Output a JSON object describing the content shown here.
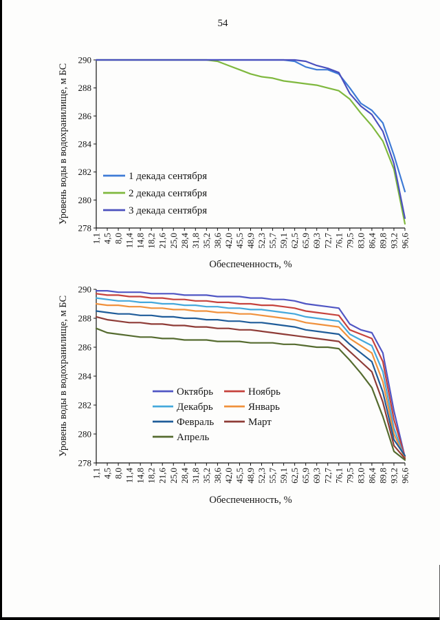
{
  "page": {
    "number": "54"
  },
  "chart_data": [
    {
      "type": "line",
      "title": "",
      "xlabel": "Обеспеченность, %",
      "ylabel": "Уровень воды в водохранилище, м БС",
      "ylim": [
        278,
        290
      ],
      "yticks": [
        278,
        280,
        282,
        284,
        286,
        288,
        290
      ],
      "grid": false,
      "legend_position": "inside-left",
      "categories": [
        "1,1",
        "4,5",
        "8,0",
        "11,4",
        "14,8",
        "18,2",
        "21,6",
        "25,0",
        "28,4",
        "31,8",
        "35,2",
        "38,6",
        "42,0",
        "45,5",
        "48,9",
        "52,3",
        "55,7",
        "59,1",
        "62,5",
        "65,9",
        "69,3",
        "72,7",
        "76,1",
        "79,5",
        "83,0",
        "86,4",
        "89,8",
        "93,2",
        "96,6"
      ],
      "series": [
        {
          "name": "1 декада сентября",
          "color": "#3E7BD6",
          "values": [
            290,
            290,
            290,
            290,
            290,
            290,
            290,
            290,
            290,
            290,
            290,
            290,
            290,
            290,
            290,
            290,
            290,
            290,
            289.9,
            289.5,
            289.3,
            289.3,
            289.0,
            288.0,
            286.9,
            286.4,
            285.5,
            283.2,
            280.6
          ]
        },
        {
          "name": "2 декада сентября",
          "color": "#7FB83E",
          "values": [
            290,
            290,
            290,
            290,
            290,
            290,
            290,
            290,
            290,
            290,
            290,
            289.9,
            289.6,
            289.3,
            289.0,
            288.8,
            288.7,
            288.5,
            288.4,
            288.3,
            288.2,
            288.0,
            287.8,
            287.2,
            286.2,
            285.3,
            284.2,
            282.2,
            278.3
          ]
        },
        {
          "name": "3 декада сентября",
          "color": "#4B50BE",
          "values": [
            290,
            290,
            290,
            290,
            290,
            290,
            290,
            290,
            290,
            290,
            290,
            290,
            290,
            290,
            290,
            290,
            290,
            290,
            290,
            289.9,
            289.6,
            289.4,
            289.1,
            287.6,
            286.7,
            286.1,
            284.9,
            282.6,
            278.7
          ]
        }
      ]
    },
    {
      "type": "line",
      "title": "",
      "xlabel": "Обеспеченность, %",
      "ylabel": "Уровень воды в водохранилище, м БС",
      "ylim": [
        278,
        290
      ],
      "yticks": [
        278,
        280,
        282,
        284,
        286,
        288,
        290
      ],
      "grid": false,
      "legend_position": "inside-center",
      "categories": [
        "1,1",
        "4,5",
        "8,0",
        "11,4",
        "14,8",
        "18,2",
        "21,6",
        "25,0",
        "28,4",
        "31,8",
        "35,2",
        "38,6",
        "42,0",
        "45,5",
        "48,9",
        "52,3",
        "55,7",
        "59,1",
        "62,5",
        "65,9",
        "69,3",
        "72,7",
        "76,1",
        "79,5",
        "83,0",
        "86,4",
        "89,8",
        "93,2",
        "96,6"
      ],
      "series": [
        {
          "name": "Октябрь",
          "color": "#5056C4",
          "values": [
            289.9,
            289.9,
            289.8,
            289.8,
            289.8,
            289.7,
            289.7,
            289.7,
            289.6,
            289.6,
            289.6,
            289.5,
            289.5,
            289.5,
            289.4,
            289.4,
            289.3,
            289.3,
            289.2,
            289.0,
            288.9,
            288.8,
            288.7,
            287.6,
            287.2,
            287.0,
            285.6,
            281.6,
            278.4
          ]
        },
        {
          "name": "Ноябрь",
          "color": "#C6423C",
          "values": [
            289.7,
            289.6,
            289.6,
            289.5,
            289.5,
            289.4,
            289.4,
            289.3,
            289.3,
            289.2,
            289.2,
            289.1,
            289.1,
            289.0,
            289.0,
            288.9,
            288.9,
            288.8,
            288.7,
            288.5,
            288.4,
            288.3,
            288.2,
            287.2,
            286.9,
            286.6,
            285.0,
            281.0,
            278.4
          ]
        },
        {
          "name": "Декабрь",
          "color": "#44A8DC",
          "values": [
            289.4,
            289.3,
            289.2,
            289.2,
            289.1,
            289.1,
            289.0,
            289.0,
            288.9,
            288.9,
            288.8,
            288.8,
            288.7,
            288.7,
            288.6,
            288.6,
            288.5,
            288.4,
            288.3,
            288.1,
            288.0,
            287.9,
            287.8,
            286.9,
            286.5,
            286.1,
            284.3,
            280.4,
            278.3
          ]
        },
        {
          "name": "Январь",
          "color": "#F0913C",
          "values": [
            289.0,
            288.9,
            288.9,
            288.8,
            288.8,
            288.7,
            288.7,
            288.6,
            288.6,
            288.5,
            288.5,
            288.4,
            288.4,
            288.3,
            288.3,
            288.2,
            288.1,
            288.0,
            287.9,
            287.7,
            287.6,
            287.5,
            287.4,
            286.6,
            286.1,
            285.6,
            283.6,
            280.0,
            278.3
          ]
        },
        {
          "name": "Февраль",
          "color": "#1F5C99",
          "values": [
            288.5,
            288.4,
            288.3,
            288.3,
            288.2,
            288.2,
            288.1,
            288.1,
            288.0,
            288.0,
            287.9,
            287.9,
            287.8,
            287.8,
            287.7,
            287.7,
            287.6,
            287.5,
            287.4,
            287.2,
            287.1,
            287.0,
            286.9,
            286.2,
            285.6,
            285.0,
            282.9,
            279.6,
            278.5
          ]
        },
        {
          "name": "Март",
          "color": "#8E3B36",
          "values": [
            288.1,
            287.9,
            287.8,
            287.7,
            287.7,
            287.6,
            287.6,
            287.5,
            287.5,
            287.4,
            287.4,
            287.3,
            287.3,
            287.2,
            287.2,
            287.1,
            287.0,
            286.9,
            286.8,
            286.7,
            286.6,
            286.5,
            286.4,
            285.7,
            285.0,
            284.3,
            282.2,
            279.2,
            278.3
          ]
        },
        {
          "name": "Апрель",
          "color": "#556B2F",
          "values": [
            287.3,
            287.0,
            286.9,
            286.8,
            286.7,
            286.7,
            286.6,
            286.6,
            286.5,
            286.5,
            286.5,
            286.4,
            286.4,
            286.4,
            286.3,
            286.3,
            286.3,
            286.2,
            286.2,
            286.1,
            286.0,
            286.0,
            285.9,
            285.1,
            284.2,
            283.2,
            281.2,
            278.8,
            278.2
          ]
        }
      ]
    }
  ]
}
